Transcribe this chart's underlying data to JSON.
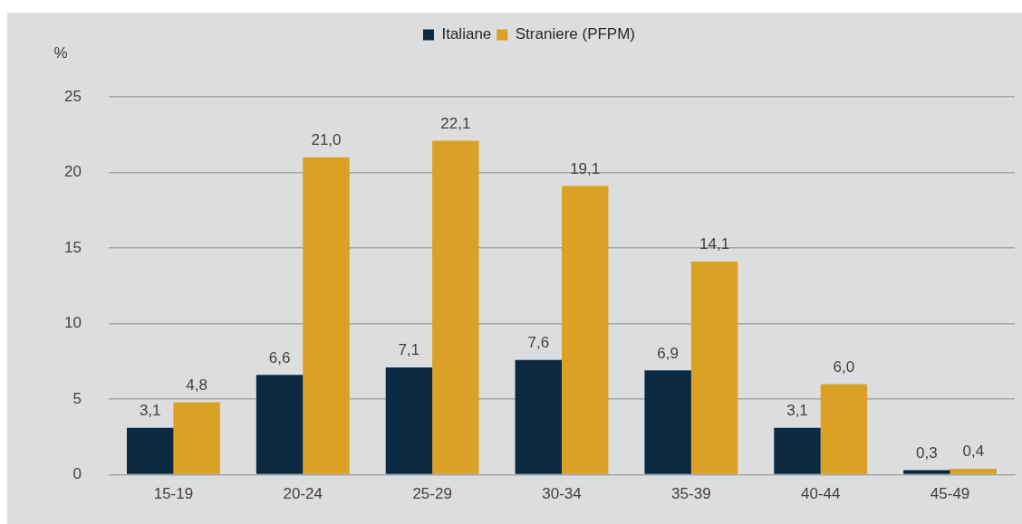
{
  "chart_data": {
    "type": "bar",
    "ylabel": "%",
    "categories": [
      "15-19",
      "20-24",
      "25-29",
      "30-34",
      "35-39",
      "40-44",
      "45-49"
    ],
    "series": [
      {
        "name": "Italiane",
        "color": "#0b2a42",
        "values": [
          3.1,
          6.6,
          7.1,
          7.6,
          6.9,
          3.1,
          0.3
        ],
        "value_labels": [
          "3,1",
          "6,6",
          "7,1",
          "7,6",
          "6,9",
          "3,1",
          "0,3"
        ]
      },
      {
        "name": "Straniere (PFPM)",
        "color": "#daa125",
        "values": [
          4.8,
          21.0,
          22.1,
          19.1,
          14.1,
          6.0,
          0.4
        ],
        "value_labels": [
          "4,8",
          "21,0",
          "22,1",
          "19,1",
          "14,1",
          "6,0",
          "0,4"
        ]
      }
    ],
    "ylim": [
      0,
      25
    ],
    "yticks": [
      0,
      5,
      10,
      15,
      20,
      25
    ],
    "grid": "y",
    "legend": "top"
  }
}
